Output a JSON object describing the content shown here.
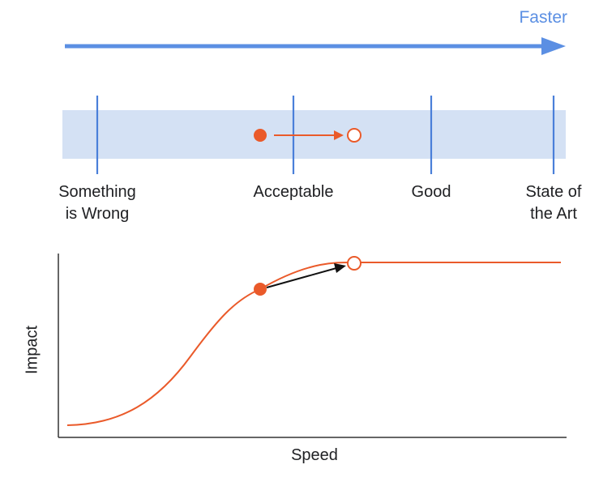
{
  "header": {
    "faster_label": "Faster",
    "arrow_color": "#5b8fe3"
  },
  "scale": {
    "band_color": "#d4e1f4",
    "tick_color": "#4a7fd9",
    "markers": [
      {
        "id": "something-wrong",
        "line1": "Something",
        "line2": "is Wrong"
      },
      {
        "id": "acceptable",
        "line1": "Acceptable",
        "line2": ""
      },
      {
        "id": "good",
        "line1": "Good",
        "line2": ""
      },
      {
        "id": "state-of-art",
        "line1": "State of",
        "line2": "the Art"
      }
    ],
    "current_point": "filled",
    "target_point": "hollow",
    "point_color": "#ea5a2a"
  },
  "chart_data": {
    "type": "line",
    "xlabel": "Speed",
    "ylabel": "Impact",
    "shape": "sigmoid rising then flat plateau",
    "curve_color": "#ea5a2a",
    "points": [
      {
        "role": "current",
        "style": "filled"
      },
      {
        "role": "target",
        "style": "hollow"
      }
    ],
    "arrow_color": "#111111",
    "grid": false
  }
}
